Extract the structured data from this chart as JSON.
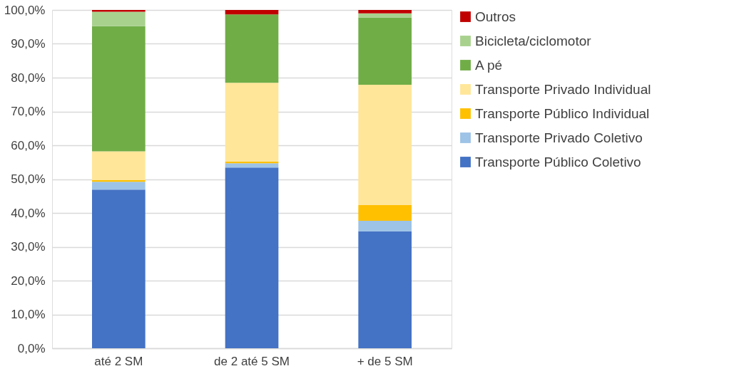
{
  "chart_data": {
    "type": "bar",
    "stacked": true,
    "categories": [
      "até 2 SM",
      "de 2 até 5 SM",
      "+ de 5 SM"
    ],
    "series": [
      {
        "name": "Transporte Público Coletivo",
        "color": "#4472c4",
        "values": [
          46.9,
          53.4,
          34.6
        ]
      },
      {
        "name": "Transporte Privado Coletivo",
        "color": "#9dc3e6",
        "values": [
          2.3,
          1.3,
          3.1
        ]
      },
      {
        "name": "Transporte Público Individual",
        "color": "#ffc000",
        "values": [
          0.5,
          0.5,
          4.6
        ]
      },
      {
        "name": "Transporte Privado Individual",
        "color": "#ffe699",
        "values": [
          8.5,
          23.3,
          35.6
        ]
      },
      {
        "name": "A pé",
        "color": "#70ad47",
        "values": [
          37.0,
          20.2,
          19.9
        ]
      },
      {
        "name": "Bicicleta/ciclomotor",
        "color": "#a9d18e",
        "values": [
          4.3,
          0.0,
          1.2
        ]
      },
      {
        "name": "Outros",
        "color": "#c00000",
        "values": [
          0.5,
          1.3,
          1.0
        ]
      }
    ],
    "ylim": [
      0,
      100
    ],
    "yticks": [
      {
        "value": 0,
        "label": "0,0%"
      },
      {
        "value": 10,
        "label": "10,0%"
      },
      {
        "value": 20,
        "label": "20,0%"
      },
      {
        "value": 30,
        "label": "30,0%"
      },
      {
        "value": 40,
        "label": "40,0%"
      },
      {
        "value": 50,
        "label": "50,0%"
      },
      {
        "value": 60,
        "label": "60,0%"
      },
      {
        "value": 70,
        "label": "70,0%"
      },
      {
        "value": 80,
        "label": "80,0%"
      },
      {
        "value": 90,
        "label": "90,0%"
      },
      {
        "value": 100,
        "label": "100,0%"
      }
    ],
    "grid": "y",
    "legend": "right"
  }
}
